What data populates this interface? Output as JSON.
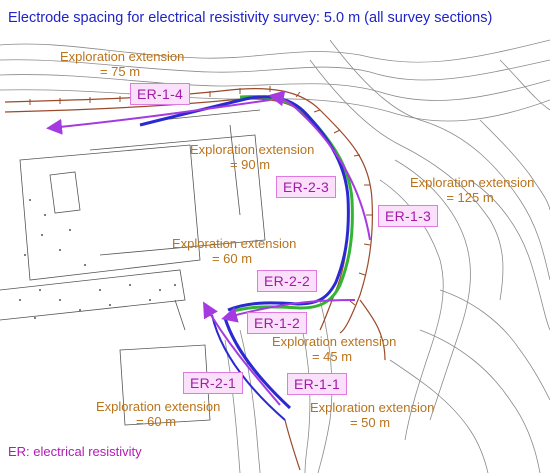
{
  "title": "Electrode spacing for electrical resistivity survey: 5.0 m (all survey sections)",
  "legend": "ER: electrical resistivity",
  "extensions": [
    {
      "label": "Exploration extension",
      "value": "= 75 m"
    },
    {
      "label": "Exploration extension",
      "value": "= 90 m"
    },
    {
      "label": "Exploration extension",
      "value": "= 125 m"
    },
    {
      "label": "Exploration extension",
      "value": "= 60 m"
    },
    {
      "label": "Exploration extension",
      "value": "= 45 m"
    },
    {
      "label": "Exploration extension",
      "value": "= 60 m"
    },
    {
      "label": "Exploration extension",
      "value": "= 50 m"
    }
  ],
  "survey_lines": [
    {
      "name": "ER-1-4"
    },
    {
      "name": "ER-2-3"
    },
    {
      "name": "ER-1-3"
    },
    {
      "name": "ER-2-2"
    },
    {
      "name": "ER-1-2"
    },
    {
      "name": "ER-2-1"
    },
    {
      "name": "ER-1-1"
    }
  ],
  "colors": {
    "title": "#1f23c8",
    "extension_text": "#b8731c",
    "label_text": "#a31aa8",
    "label_bg": "#fbe0fb",
    "arrow_line": "#a53ae0",
    "survey_line_blue": "#2a2ad0",
    "survey_line_green": "#33b533",
    "electrode_line": "#9a4a2a",
    "contour": "#777777"
  }
}
